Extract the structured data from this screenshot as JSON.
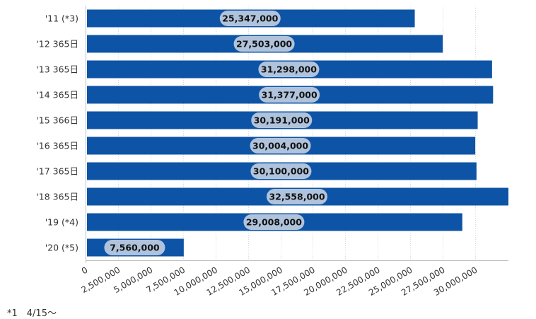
{
  "chart_data": {
    "type": "bar",
    "orientation": "horizontal",
    "categories": [
      "'11 (*3)",
      "'12 365日",
      "'13 365日",
      "'14 365日",
      "'15 366日",
      "'16 365日",
      "'17 365日",
      "'18 365日",
      "'19 (*4)",
      "'20 (*5)"
    ],
    "values": [
      25347000,
      27503000,
      31298000,
      31377000,
      30191000,
      30004000,
      30100000,
      32558000,
      29008000,
      7560000
    ],
    "value_labels": [
      "25,347,000",
      "27,503,000",
      "31,298,000",
      "31,377,000",
      "30,191,000",
      "30,004,000",
      "30,100,000",
      "32,558,000",
      "29,008,000",
      "7,560,000"
    ],
    "x_ticks": [
      0,
      2500000,
      5000000,
      7500000,
      10000000,
      12500000,
      15000000,
      17500000,
      20000000,
      22500000,
      25000000,
      27500000,
      30000000
    ],
    "x_tick_labels": [
      "0",
      "2,500,000",
      "5,000,000",
      "7,500,000",
      "10,000,000",
      "12,500,000",
      "15,000,000",
      "17,500,000",
      "20,000,000",
      "22,500,000",
      "25,000,000",
      "27,500,000",
      "30,000,000"
    ],
    "xlim": [
      0,
      32558000
    ],
    "grid": "vertical dotted",
    "legend": "none",
    "colors": {
      "bar": "#0d54a6",
      "label_bubble": "#b9c9de",
      "label_text": "#111111",
      "grid": "#d8d8d8",
      "axis_text": "#333333"
    }
  },
  "footnote": "*1　4/15～"
}
